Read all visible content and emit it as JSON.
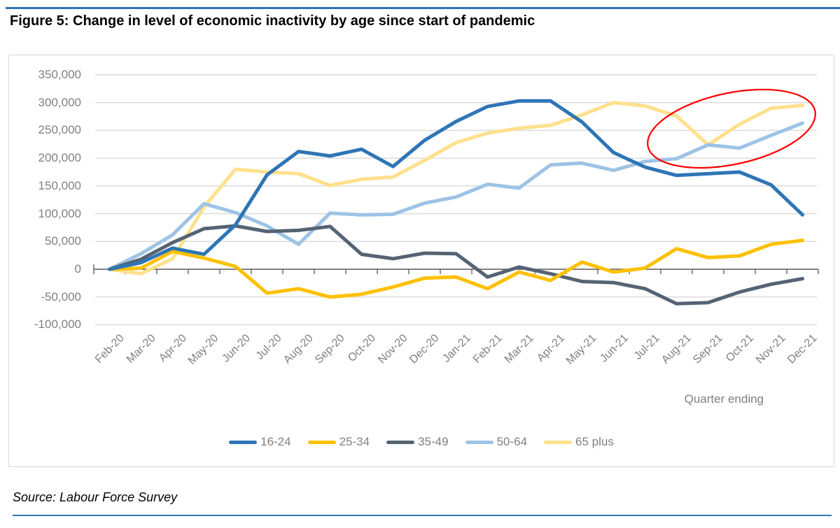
{
  "header": {
    "title": "Figure 5: Change in level of economic inactivity by age since start of pandemic"
  },
  "chart_data": {
    "type": "line",
    "title": "Change in level of economic inactivity by age since start of pandemic",
    "xlabel": "Quarter ending",
    "ylabel": "",
    "ylim": [
      -100000,
      350000
    ],
    "ytick_step": 50000,
    "y_tick_labels": [
      "350,000",
      "300,000",
      "250,000",
      "200,000",
      "150,000",
      "100,000",
      "50,000",
      "0",
      "-50,000",
      "-100,000"
    ],
    "grid": "horizontal",
    "legend_position": "bottom",
    "categories": [
      "Feb-20",
      "Mar-20",
      "Apr-20",
      "May-20",
      "Jun-20",
      "Jul-20",
      "Aug-20",
      "Sep-20",
      "Oct-20",
      "Nov-20",
      "Dec-20",
      "Jan-21",
      "Feb-21",
      "Mar-21",
      "Apr-21",
      "May-21",
      "Jun-21",
      "Jul-21",
      "Aug-21",
      "Sep-21",
      "Oct-21",
      "Nov-21",
      "Dec-21"
    ],
    "series": [
      {
        "name": "16-24",
        "color": "#2E75B6",
        "values": [
          0,
          12000,
          38000,
          27000,
          80000,
          170000,
          212000,
          204000,
          216000,
          185000,
          232000,
          266000,
          293000,
          303000,
          303000,
          265000,
          210000,
          184000,
          169000,
          172000,
          175000,
          152000,
          98000
        ]
      },
      {
        "name": "25-34",
        "color": "#FFC000",
        "values": [
          0,
          2000,
          32000,
          20000,
          5000,
          -43000,
          -35000,
          -50000,
          -45000,
          -32000,
          -16000,
          -14000,
          -35000,
          -5000,
          -20000,
          13000,
          -5000,
          2000,
          37000,
          21000,
          24000,
          45000,
          52000
        ]
      },
      {
        "name": "35-49",
        "color": "#556373",
        "values": [
          0,
          18000,
          48000,
          73000,
          78000,
          68000,
          70000,
          77000,
          27000,
          19000,
          29000,
          28000,
          -14000,
          4000,
          -8000,
          -22000,
          -24000,
          -35000,
          -62000,
          -60000,
          -41000,
          -27000,
          -17000
        ]
      },
      {
        "name": "50-64",
        "color": "#9DC3E6",
        "values": [
          0,
          28000,
          62000,
          118000,
          102000,
          78000,
          45000,
          101000,
          98000,
          99000,
          119000,
          130000,
          153000,
          146000,
          188000,
          191000,
          178000,
          194000,
          199000,
          224000,
          218000,
          241000,
          263000
        ]
      },
      {
        "name": "65 plus",
        "color": "#FFE08C",
        "values": [
          0,
          -8000,
          19000,
          112000,
          180000,
          175000,
          172000,
          151000,
          162000,
          166000,
          196000,
          228000,
          245000,
          254000,
          259000,
          278000,
          300000,
          294000,
          276000,
          224000,
          261000,
          290000,
          295000
        ]
      }
    ],
    "annotation": {
      "shape": "ellipse",
      "color": "#FF0000",
      "highlights": "rise of 50-64 and 65 plus inactivity, Aug-21 to Dec-21"
    }
  },
  "style_colors": {
    "rule_blue": "#2E75B6",
    "gridline": "#D9D9D9",
    "axis_line": "#595959",
    "tick_label_gray": "#808080"
  },
  "footer": {
    "source": "Source: Labour Force Survey"
  }
}
